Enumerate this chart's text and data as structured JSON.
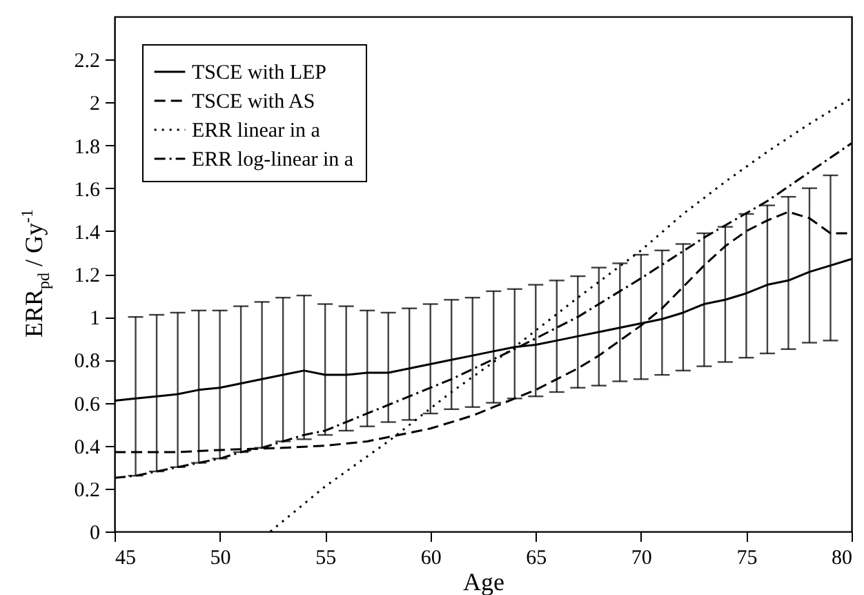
{
  "chart_data": {
    "type": "line",
    "xlabel": "Age",
    "ylabel": "ERR$_{pd}$ / Gy$^{-1}$",
    "xlim": [
      45,
      80
    ],
    "xticks": [
      45,
      50,
      55,
      60,
      65,
      70,
      75,
      80
    ],
    "ylim": [
      0,
      2.4
    ],
    "yticks": [
      0,
      0.2,
      0.4,
      0.6,
      0.8,
      1,
      1.2,
      1.4,
      1.6,
      1.8,
      2,
      2.2
    ],
    "grid": false,
    "legend": "top left",
    "series": [
      {
        "name": "TSCE with LEP",
        "color": "#000000",
        "line_style": "solid",
        "x": [
          45,
          46,
          47,
          48,
          49,
          50,
          51,
          52,
          53,
          54,
          55,
          56,
          57,
          58,
          59,
          60,
          61,
          62,
          63,
          64,
          65,
          66,
          67,
          68,
          69,
          70,
          71,
          72,
          73,
          74,
          75,
          76,
          77,
          78,
          79,
          80
        ],
        "values": [
          0.61,
          0.62,
          0.63,
          0.64,
          0.66,
          0.67,
          0.69,
          0.71,
          0.73,
          0.75,
          0.73,
          0.73,
          0.74,
          0.74,
          0.76,
          0.78,
          0.8,
          0.82,
          0.84,
          0.86,
          0.87,
          0.89,
          0.91,
          0.93,
          0.95,
          0.97,
          0.99,
          1.02,
          1.06,
          1.08,
          1.11,
          1.15,
          1.17,
          1.21,
          1.24,
          1.27
        ],
        "errors": [
          null,
          [
            0.26,
            1.0
          ],
          [
            0.28,
            1.01
          ],
          [
            0.3,
            1.02
          ],
          [
            0.32,
            1.03
          ],
          [
            0.34,
            1.03
          ],
          [
            0.37,
            1.05
          ],
          [
            0.39,
            1.07
          ],
          [
            0.42,
            1.09
          ],
          [
            0.43,
            1.1
          ],
          [
            0.45,
            1.06
          ],
          [
            0.47,
            1.05
          ],
          [
            0.49,
            1.03
          ],
          [
            0.51,
            1.02
          ],
          [
            0.52,
            1.04
          ],
          [
            0.55,
            1.06
          ],
          [
            0.57,
            1.08
          ],
          [
            0.58,
            1.09
          ],
          [
            0.6,
            1.12
          ],
          [
            0.62,
            1.13
          ],
          [
            0.63,
            1.15
          ],
          [
            0.65,
            1.17
          ],
          [
            0.67,
            1.19
          ],
          [
            0.68,
            1.23
          ],
          [
            0.7,
            1.25
          ],
          [
            0.71,
            1.29
          ],
          [
            0.73,
            1.31
          ],
          [
            0.75,
            1.34
          ],
          [
            0.77,
            1.39
          ],
          [
            0.79,
            1.42
          ],
          [
            0.81,
            1.48
          ],
          [
            0.83,
            1.52
          ],
          [
            0.85,
            1.56
          ],
          [
            0.88,
            1.6
          ],
          [
            0.89,
            1.66
          ],
          null
        ]
      },
      {
        "name": "TSCE with AS",
        "color": "#000000",
        "line_style": "dashed",
        "x": [
          45,
          48,
          50,
          53,
          55,
          57,
          58,
          60,
          62,
          63,
          64,
          65,
          66,
          67,
          68,
          69,
          70,
          71,
          72,
          73,
          74,
          75,
          76,
          77,
          78,
          79,
          80
        ],
        "values": [
          0.37,
          0.37,
          0.38,
          0.39,
          0.4,
          0.42,
          0.44,
          0.48,
          0.54,
          0.58,
          0.62,
          0.66,
          0.71,
          0.76,
          0.82,
          0.89,
          0.96,
          1.04,
          1.14,
          1.24,
          1.33,
          1.4,
          1.45,
          1.49,
          1.46,
          1.39,
          1.39
        ]
      },
      {
        "name": "ERR linear in a",
        "color": "#000000",
        "line_style": "dotted",
        "x": [
          52.4,
          55,
          58,
          61,
          64,
          67,
          70,
          72,
          74,
          76,
          78,
          80
        ],
        "values": [
          0,
          0.21,
          0.42,
          0.65,
          0.86,
          1.09,
          1.31,
          1.48,
          1.63,
          1.77,
          1.9,
          2.02
        ]
      },
      {
        "name": "ERR log-linear in a",
        "color": "#000000",
        "line_style": "dashdot",
        "x": [
          45,
          46,
          47,
          48,
          49,
          50,
          51,
          52,
          53,
          54,
          55,
          58,
          61,
          64,
          67,
          70,
          73,
          76,
          80
        ],
        "values": [
          0.25,
          0.26,
          0.28,
          0.3,
          0.32,
          0.34,
          0.37,
          0.39,
          0.42,
          0.45,
          0.47,
          0.59,
          0.71,
          0.85,
          1.0,
          1.18,
          1.37,
          1.54,
          1.81
        ]
      }
    ]
  }
}
